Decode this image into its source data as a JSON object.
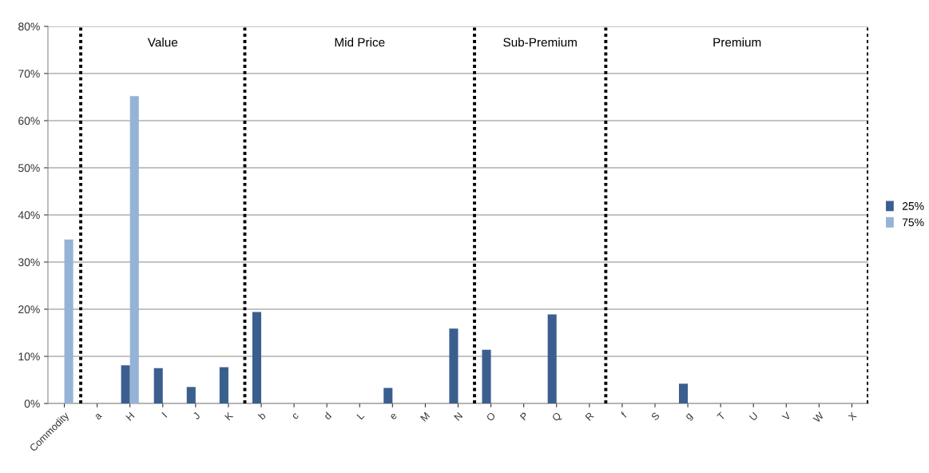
{
  "chart_data": {
    "type": "bar",
    "categories": [
      "Commodity",
      "a",
      "H",
      "I",
      "J",
      "K",
      "b",
      "c",
      "d",
      "L",
      "e",
      "M",
      "N",
      "O",
      "P",
      "Q",
      "R",
      "f",
      "S",
      "g",
      "T",
      "U",
      "V",
      "W",
      "X"
    ],
    "series": [
      {
        "name": "25%",
        "color": "#3a5f8f",
        "values": [
          0,
          0,
          8.1,
          7.5,
          3.5,
          7.7,
          19.4,
          0,
          0,
          0,
          3.3,
          0,
          15.9,
          11.4,
          0,
          18.9,
          0,
          0,
          0,
          4.2,
          0,
          0,
          0,
          0,
          0
        ]
      },
      {
        "name": "75%",
        "color": "#95b3d7",
        "values": [
          34.8,
          0,
          65.2,
          0,
          0,
          0,
          0,
          0,
          0,
          0,
          0,
          0,
          0,
          0,
          0,
          0,
          0,
          0,
          0,
          0,
          0,
          0,
          0,
          0,
          0
        ]
      }
    ],
    "ylim": [
      0,
      80
    ],
    "yticks": [
      {
        "value": 0,
        "label": "0%"
      },
      {
        "value": 10,
        "label": "10%"
      },
      {
        "value": 20,
        "label": "20%"
      },
      {
        "value": 30,
        "label": "30%"
      },
      {
        "value": 40,
        "label": "40%"
      },
      {
        "value": 50,
        "label": "50%"
      },
      {
        "value": 60,
        "label": "60%"
      },
      {
        "value": 70,
        "label": "70%"
      },
      {
        "value": 80,
        "label": "80%"
      }
    ],
    "annotations": [
      "Value",
      "Mid Price",
      "Sub-Premium",
      "Premium"
    ],
    "grid": "y",
    "legend": "right"
  }
}
